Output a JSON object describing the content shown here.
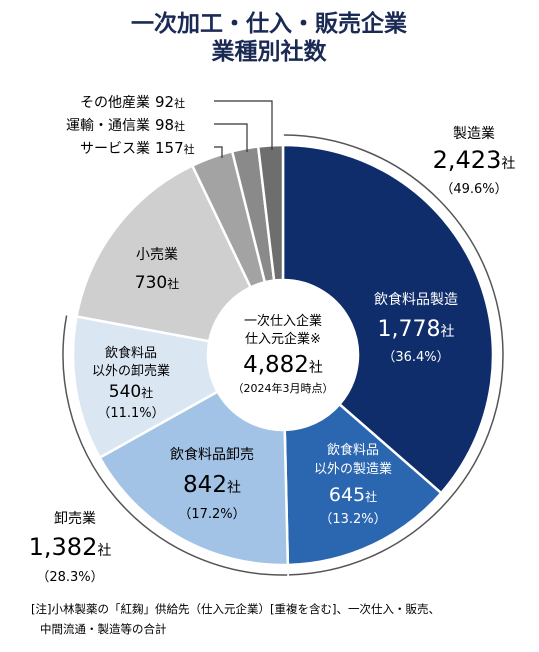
{
  "title_line1": "一次加工・仕入・販売企業",
  "title_line2": "業種別社数",
  "center": {
    "line1": "一次仕入企業",
    "line2": "仕入元企業※",
    "total": "4,882",
    "unit": "社",
    "date": "（2024年3月時点）"
  },
  "outer_groups": {
    "manufacturing": {
      "name": "製造業",
      "value": "2,423",
      "unit": "社",
      "pct": "（49.6%）"
    },
    "wholesale": {
      "name": "卸売業",
      "value": "1,382",
      "unit": "社",
      "pct": "（28.3%）"
    }
  },
  "segments": {
    "food_mfg": {
      "name": "飲食料品製造",
      "value": "1,778",
      "unit": "社",
      "pct": "（36.4%）"
    },
    "other_mfg": {
      "name1": "飲食料品",
      "name2": "以外の製造業",
      "value": "645",
      "unit": "社",
      "pct": "（13.2%）"
    },
    "food_wholesale": {
      "name": "飲食料品卸売",
      "value": "842",
      "unit": "社",
      "pct": "（17.2%）"
    },
    "other_wholesale": {
      "name1": "飲食料品",
      "name2": "以外の卸売業",
      "value": "540",
      "unit": "社",
      "pct": "（11.1%）"
    },
    "retail": {
      "name": "小売業",
      "value": "730",
      "unit": "社"
    }
  },
  "small_labels": {
    "services": {
      "name": "サービス業",
      "value": "157",
      "unit": "社"
    },
    "transport": {
      "name": "運輸・通信業",
      "value": "98",
      "unit": "社"
    },
    "other_ind": {
      "name": "その他産業",
      "value": "92",
      "unit": "社"
    }
  },
  "note_line1": "[注]小林製薬の「紅麹」供給先（仕入元企業）[重複を含む]、一次仕入・販売、",
  "note_line2": "中間流通・製造等の合計",
  "chart_data": {
    "type": "pie",
    "title": "一次加工・仕入・販売企業 業種別社数",
    "categories": [
      "飲食料品製造",
      "飲食料品以外の製造業",
      "飲食料品卸売",
      "飲食料品以外の卸売業",
      "小売業",
      "サービス業",
      "運輸・通信業",
      "その他産業"
    ],
    "values": [
      1778,
      645,
      842,
      540,
      730,
      157,
      98,
      92
    ],
    "percent_labels": {
      "飲食料品製造": 36.4,
      "飲食料品以外の製造業": 13.2,
      "飲食料品卸売": 17.2,
      "飲食料品以外の卸売業": 11.1
    },
    "groups": [
      {
        "name": "製造業",
        "value": 2423,
        "percent": 49.6
      },
      {
        "name": "卸売業",
        "value": 1382,
        "percent": 28.3
      }
    ],
    "total": 4882,
    "colors": [
      "#0f2c6b",
      "#2b66b0",
      "#a3c3e6",
      "#dbe6f3",
      "#cfcfcf",
      "#a3a3a3",
      "#8a8a8a",
      "#6e6e6e"
    ]
  }
}
